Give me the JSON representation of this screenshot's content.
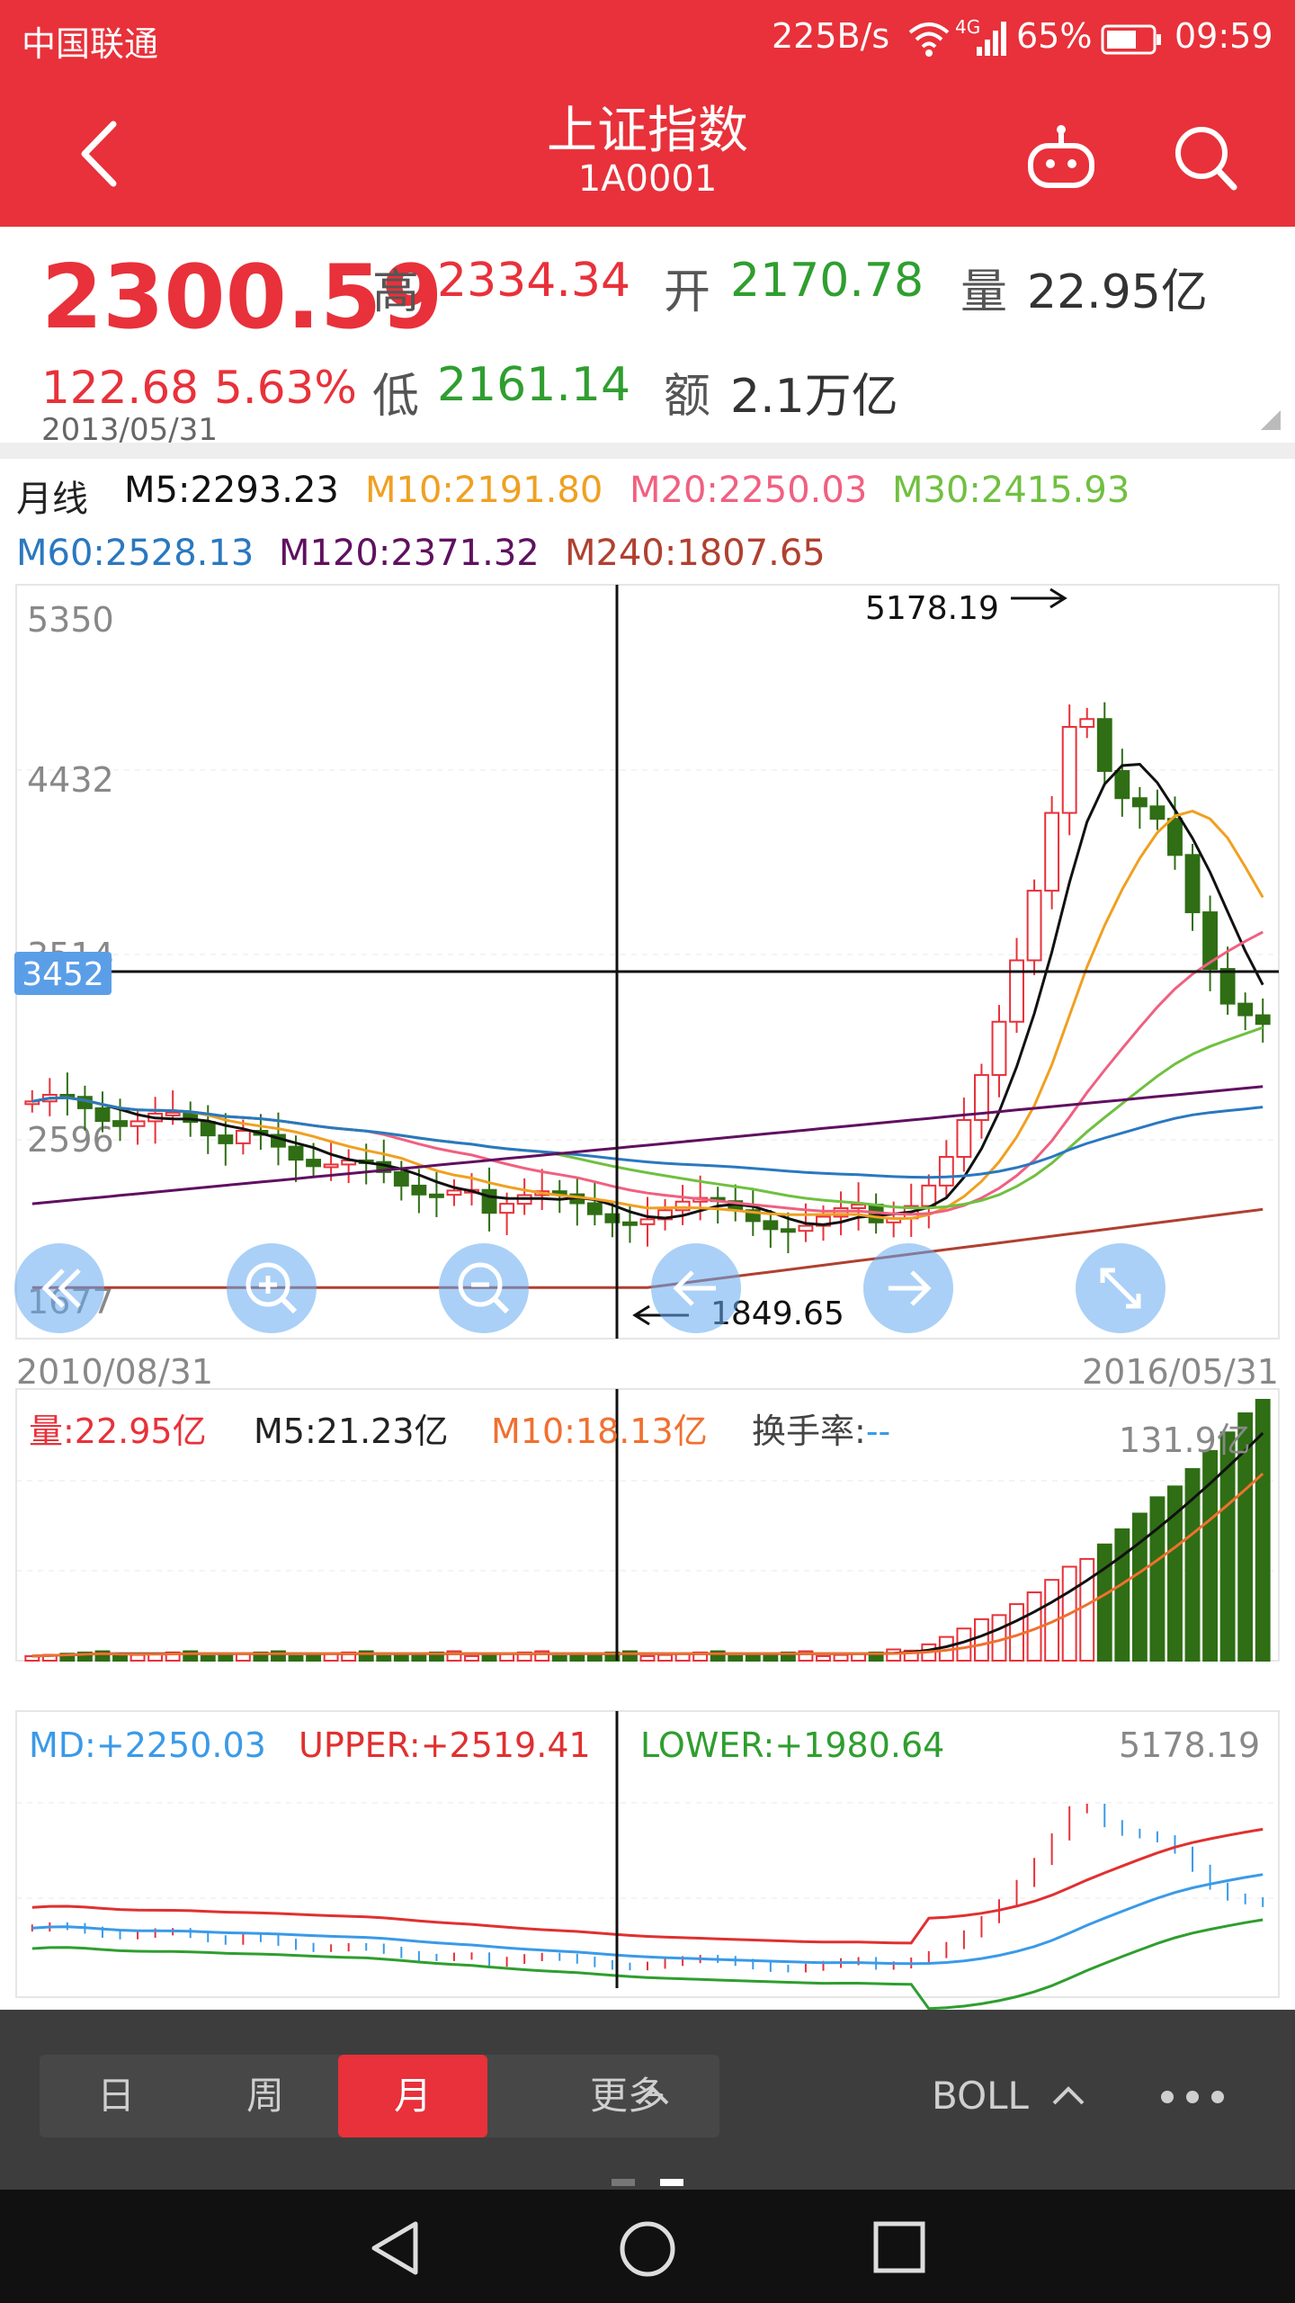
{
  "status_bar": {
    "carrier": "中国联通",
    "speed": "225B/s",
    "network": "4G",
    "battery": "65%",
    "time": "09:59"
  },
  "header": {
    "title": "上证指数",
    "code": "1A0001",
    "icons": [
      "back-icon",
      "robot-icon",
      "search-icon"
    ]
  },
  "quote": {
    "price": "2300.59",
    "change": "122.68",
    "change_pct": "5.63%",
    "date": "2013/05/31",
    "high_label": "高",
    "high": "2334.34",
    "open_label": "开",
    "open": "2170.78",
    "volume_label": "量",
    "volume": "22.95亿",
    "low_label": "低",
    "low": "2161.14",
    "amount_label": "额",
    "amount": "2.1万亿"
  },
  "ma_legend": {
    "period": "月线",
    "items": [
      {
        "text": "M5:2293.23",
        "color": "#111111"
      },
      {
        "text": "M10:2191.80",
        "color": "#f0a020"
      },
      {
        "text": "M20:2250.03",
        "color": "#f06080"
      },
      {
        "text": "M30:2415.93",
        "color": "#70c040"
      },
      {
        "text": "M60:2528.13",
        "color": "#2a78c0"
      },
      {
        "text": "M120:2371.32",
        "color": "#601060"
      },
      {
        "text": "M240:1807.65",
        "color": "#b04030"
      }
    ]
  },
  "kline": {
    "y_labels": [
      "5350",
      "4432",
      "3514",
      "2596",
      "1677"
    ],
    "crosshair_value": "3452",
    "max_annotation": "5178.19",
    "min_annotation": "1849.65",
    "start_date": "2010/08/31",
    "end_date": "2016/05/31"
  },
  "volume_panel": {
    "vol_label": "量:22.95亿",
    "m5_label": "M5:21.23亿",
    "m10_label": "M10:18.13亿",
    "turnover_label": "换手率:",
    "turnover_value": "--",
    "max_label": "131.9亿"
  },
  "boll_panel": {
    "md_label": "MD:+2250.03",
    "upper_label": "UPPER:+2519.41",
    "lower_label": "LOWER:+1980.64",
    "max_label": "5178.19"
  },
  "overlay_buttons": [
    "rewind-icon",
    "zoom-in-icon",
    "zoom-out-icon",
    "pan-left-icon",
    "pan-right-icon",
    "fullscreen-icon"
  ],
  "bottom_tabs": {
    "tabs": [
      {
        "label": "日",
        "active": false
      },
      {
        "label": "周",
        "active": false
      },
      {
        "label": "月",
        "active": true
      },
      {
        "label": "更多",
        "active": false
      }
    ],
    "indicator": "BOLL",
    "more_icon": "more-dots-icon"
  },
  "colors": {
    "brand_red": "#e8313a",
    "up": "#e8313a",
    "down": "#2f6e14",
    "green_text": "#2f9e2f"
  }
}
